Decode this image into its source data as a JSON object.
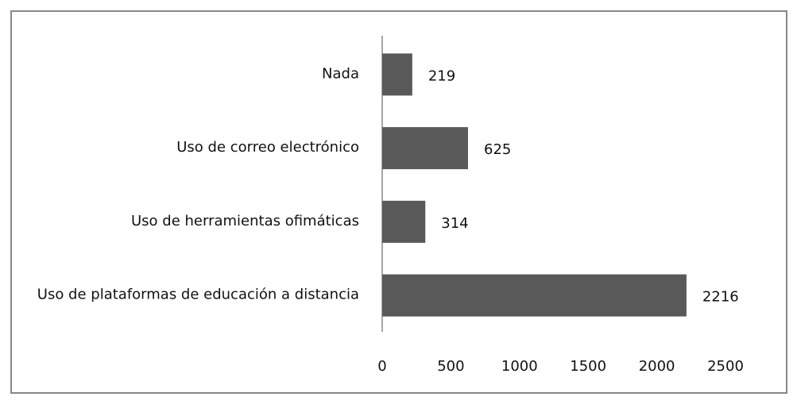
{
  "chart_data": {
    "type": "hbar",
    "categories": [
      "Nada",
      "Uso de correo electrónico",
      "Uso de herramientas ofimáticas",
      "Uso de plataformas de educación a distancia"
    ],
    "values": [
      219,
      625,
      314,
      2216
    ],
    "color": "#595959",
    "xlim": [
      0,
      2500
    ],
    "xticks": [
      0,
      500,
      1000,
      1500,
      2000,
      2500
    ],
    "grid": false
  }
}
